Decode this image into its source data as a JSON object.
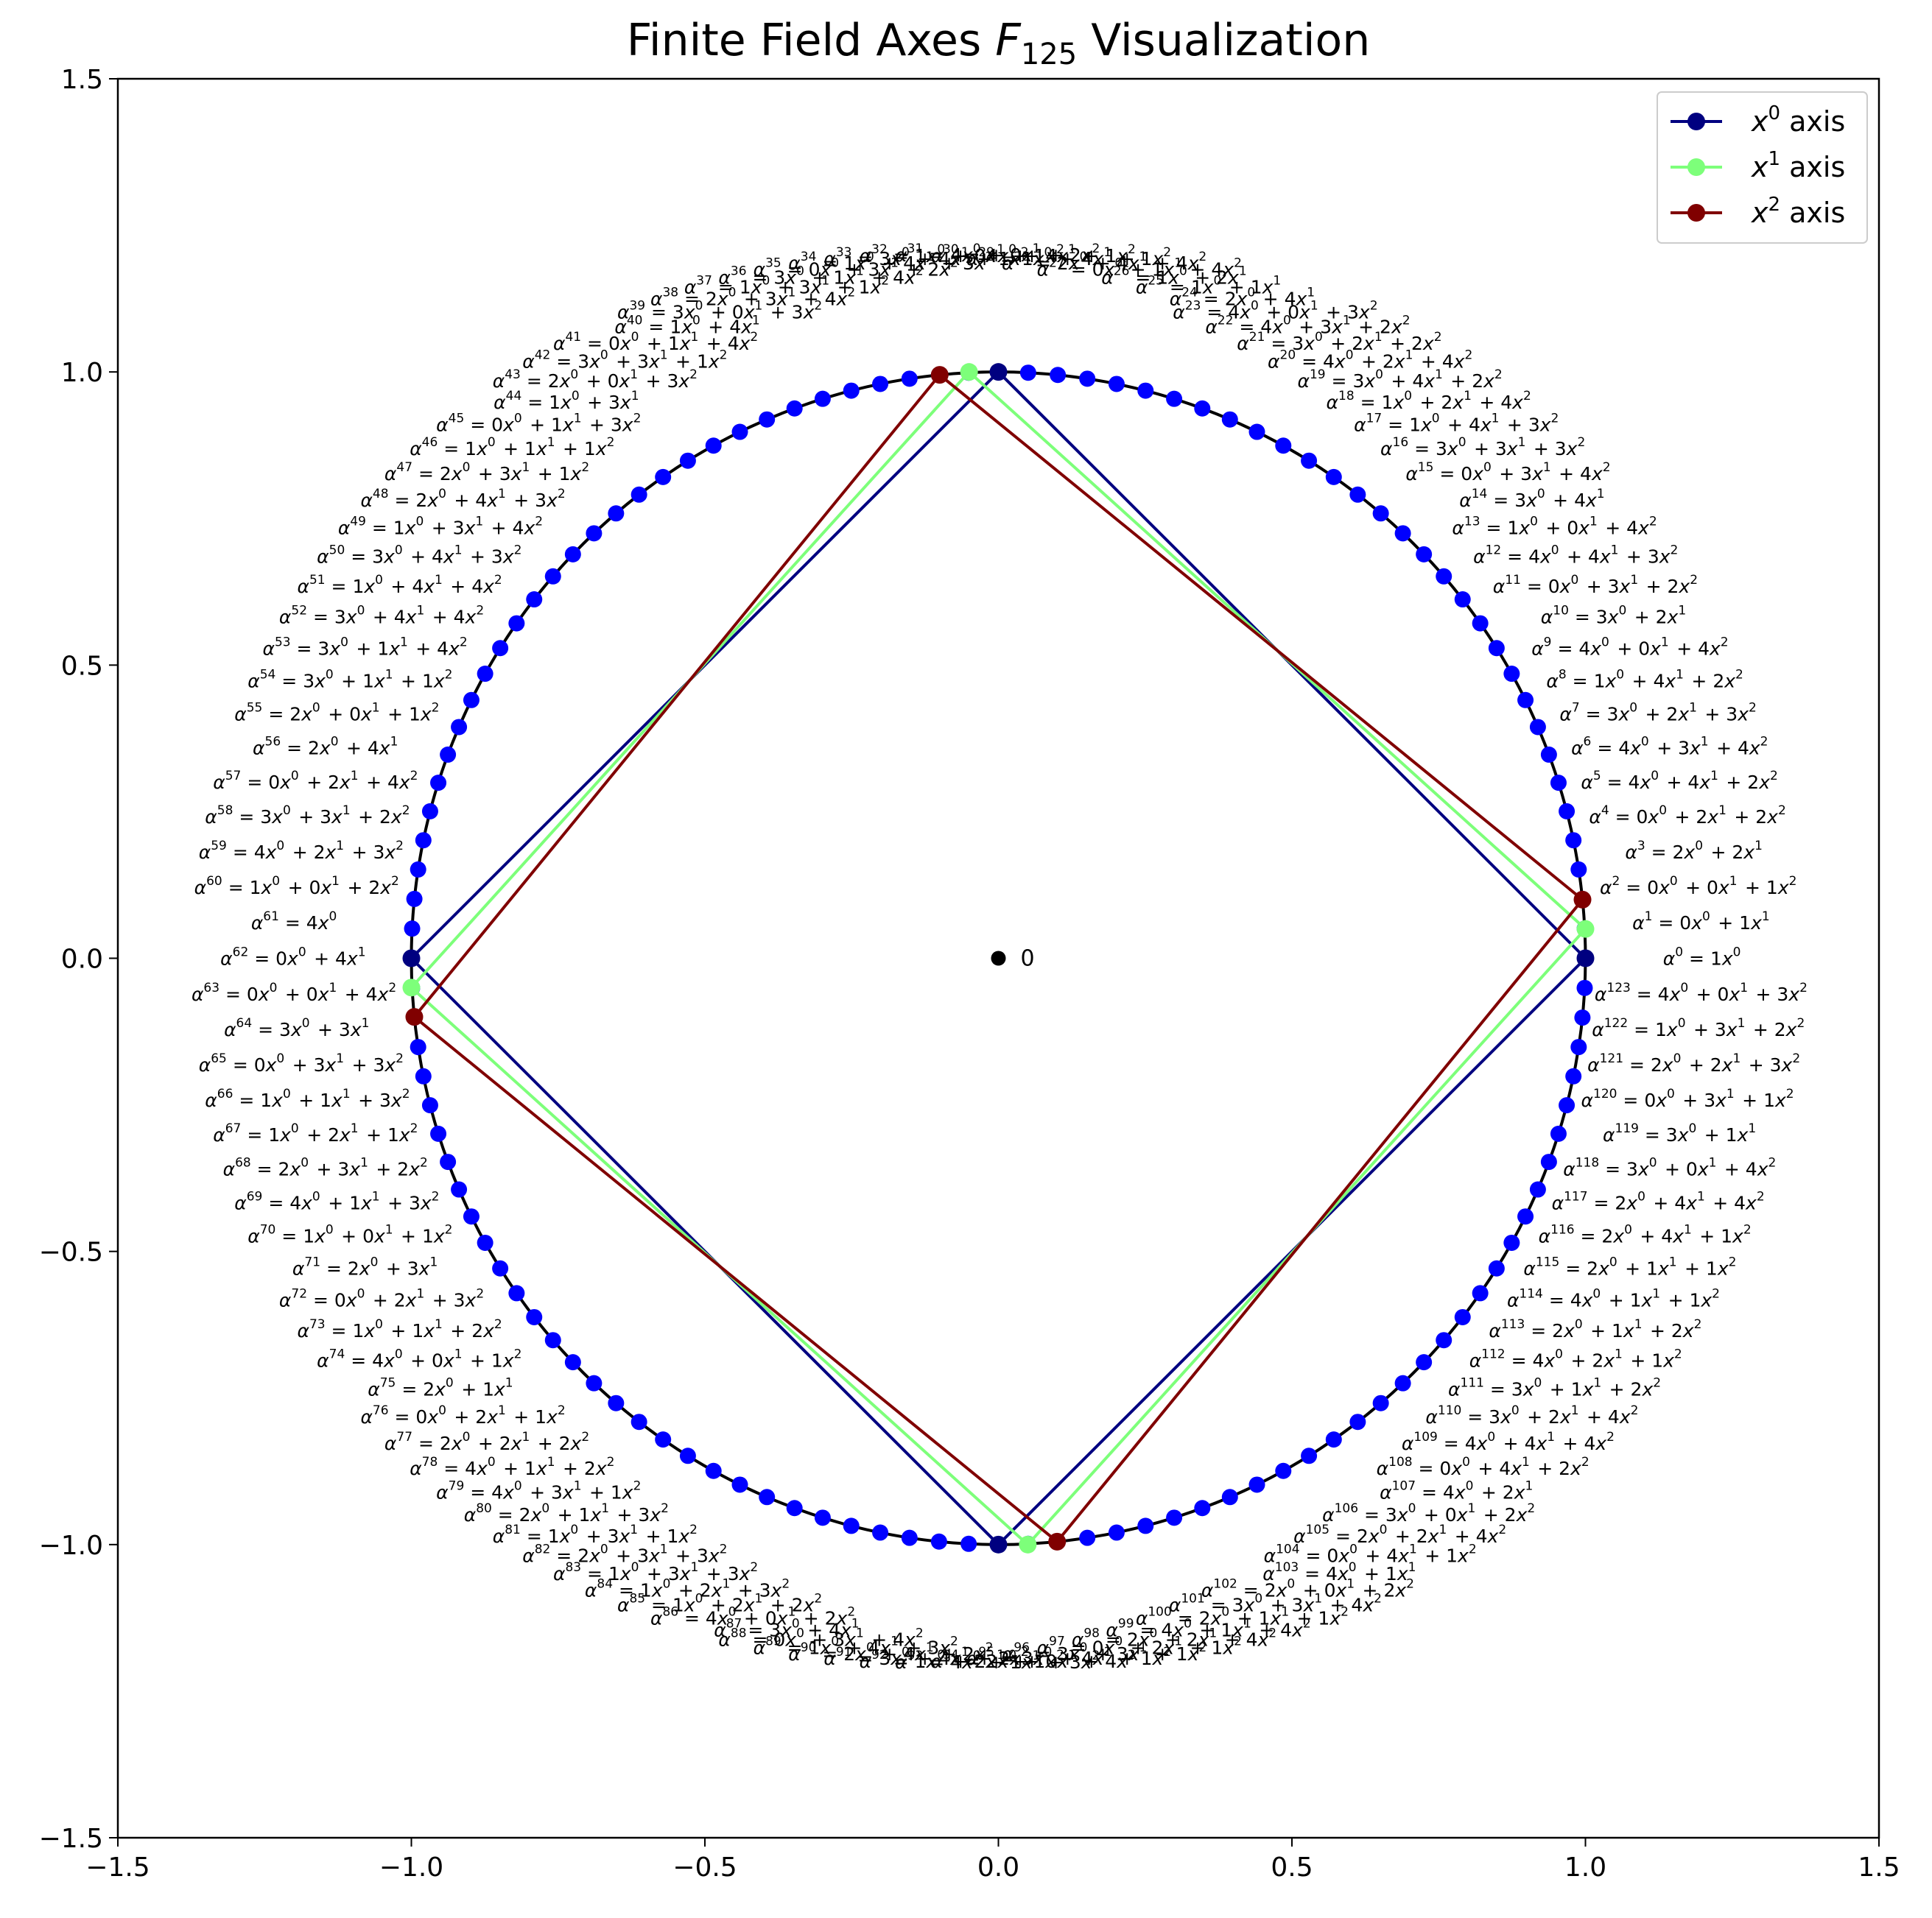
{
  "chart_data": {
    "type": "scatter",
    "title": {
      "prefix": "Finite Field Axes ",
      "field": "F",
      "subscript": "125",
      "suffix": " Visualization"
    },
    "xlim": [
      -1.5,
      1.5
    ],
    "ylim": [
      -1.5,
      1.5
    ],
    "xticks": [
      "−1.5",
      "−1.0",
      "−0.5",
      "0.0",
      "0.5",
      "1.0",
      "1.5"
    ],
    "yticks": [
      "1.5",
      "1.0",
      "0.5",
      "0.0",
      "−0.5",
      "−1.0",
      "−1.5"
    ],
    "xtick_values": [
      -1.5,
      -1.0,
      -0.5,
      0.0,
      0.5,
      1.0,
      1.5
    ],
    "ytick_values": [
      1.5,
      1.0,
      0.5,
      0.0,
      -0.5,
      -1.0,
      -1.5
    ],
    "grid": false,
    "legend_position": "top-right",
    "circle": {
      "radius": 1.0,
      "color": "#000000",
      "point_color": "#0000ff",
      "point_count": 124
    },
    "zero_point": {
      "x": 0.0,
      "y": 0.0,
      "label": "0",
      "color": "#000000"
    },
    "elements": [
      "1x^0",
      "0x^0+1x^1",
      "0x^0+0x^1+1x^2",
      "2x^0+2x^1",
      "0x^0+2x^1+2x^2",
      "4x^0+4x^1+2x^2",
      "4x^0+3x^1+4x^2",
      "3x^0+2x^1+3x^2",
      "1x^0+4x^1+2x^2",
      "4x^0+0x^1+4x^2",
      "3x^0+2x^1",
      "0x^0+3x^1+2x^2",
      "4x^0+4x^1+3x^2",
      "1x^0+0x^1+4x^2",
      "3x^0+4x^1",
      "0x^0+3x^1+4x^2",
      "3x^0+3x^1+3x^2",
      "1x^0+4x^1+3x^2",
      "1x^0+2x^1+4x^2",
      "3x^0+4x^1+2x^2",
      "4x^0+2x^1+4x^2",
      "3x^0+2x^1+2x^2",
      "4x^0+3x^1+2x^2",
      "4x^0+0x^1+3x^2",
      "2x^0+4x^1",
      "1x^0+1x^1",
      "1x^0+2x^1",
      "0x^0+1x^1+4x^2",
      "2x^0+4x^1+4x^2",
      "1x^0+4x^1+1x^2",
      "4x^0+4x^1+1x^2",
      "4x^0+0x^1+2x^2",
      "1x^0+0x^1+1x^2",
      "3x^0+4x^1+1x^2",
      "1x^0+4x^1+3x^2",
      "0x^0+3x^1+2x^2",
      "3x^0+1x^1+4x^2",
      "1x^0+3x^1+1x^2",
      "2x^0+3x^1+4x^2",
      "3x^0+0x^1+3x^2",
      "1x^0+4x^1",
      "0x^0+1x^1+4x^2",
      "3x^0+3x^1+1x^2",
      "2x^0+0x^1+3x^2",
      "1x^0+3x^1",
      "0x^0+1x^1+3x^2",
      "1x^0+1x^1+1x^2",
      "2x^0+3x^1+1x^2",
      "2x^0+4x^1+3x^2",
      "1x^0+3x^1+4x^2",
      "3x^0+4x^1+3x^2",
      "1x^0+4x^1+4x^2",
      "3x^0+4x^1+4x^2",
      "3x^0+1x^1+4x^2",
      "3x^0+1x^1+1x^2",
      "2x^0+0x^1+1x^2",
      "2x^0+4x^1",
      "0x^0+2x^1+4x^2",
      "3x^0+3x^1+2x^2",
      "4x^0+2x^1+3x^2",
      "1x^0+0x^1+2x^2",
      "4x^0",
      "0x^0+4x^1",
      "0x^0+0x^1+4x^2",
      "3x^0+3x^1",
      "0x^0+3x^1+3x^2",
      "1x^0+1x^1+3x^2",
      "1x^0+2x^1+1x^2",
      "2x^0+3x^1+2x^2",
      "4x^0+1x^1+3x^2",
      "1x^0+0x^1+1x^2",
      "2x^0+3x^1",
      "0x^0+2x^1+3x^2",
      "1x^0+1x^1+2x^2",
      "4x^0+0x^1+1x^2",
      "2x^0+1x^1",
      "0x^0+2x^1+1x^2",
      "2x^0+2x^1+2x^2",
      "4x^0+1x^1+2x^2",
      "4x^0+3x^1+1x^2",
      "2x^0+1x^1+3x^2",
      "1x^0+3x^1+1x^2",
      "2x^0+3x^1+3x^2",
      "1x^0+3x^1+3x^2",
      "1x^0+2x^1+3x^2",
      "1x^0+2x^1+2x^2",
      "4x^0+0x^1+2x^2",
      "3x^0+4x^1",
      "0x^0+3x^1+4x^2",
      "1x^0+4x^1+3x^2",
      "2x^0+4x^1+2x^2",
      "3x^0+4x^1+2x^2",
      "1x^0+2x^1+1x^2",
      "4x^0+1x^1+3x^2",
      "2x^0+0x^1+4x^2",
      "3x^0+4x^1+1x^2",
      "3x^0+3x^1+1x^2",
      "0x^0+2x^1+1x^2",
      "2x^0+2x^1+4x^2",
      "4x^0+1x^1+4x^2",
      "2x^0+1x^1+1x^2",
      "3x^0+3x^1+4x^2",
      "2x^0+0x^1+2x^2",
      "4x^0+1x^1",
      "0x^0+4x^1+1x^2",
      "2x^0+2x^1+4x^2",
      "3x^0+0x^1+2x^2",
      "4x^0+2x^1",
      "0x^0+4x^1+2x^2",
      "4x^0+4x^1+4x^2",
      "3x^0+2x^1+4x^2",
      "3x^0+1x^1+2x^2",
      "4x^0+2x^1+1x^2",
      "2x^0+1x^1+2x^2",
      "4x^0+1x^1+1x^2",
      "2x^0+1x^1+1x^2",
      "2x^0+4x^1+1x^2",
      "2x^0+4x^1+4x^2",
      "3x^0+0x^1+4x^2",
      "3x^0+1x^1",
      "0x^0+3x^1+1x^2",
      "2x^0+2x^1+3x^2",
      "1x^0+3x^1+2x^2",
      "4x^0+0x^1+3x^2"
    ],
    "series": [
      {
        "name": "x^0 axis",
        "legend_base": "x",
        "legend_sup": "0",
        "legend_suffix": " axis",
        "color": "#000080",
        "points": [
          [
            0.0,
            1.0
          ],
          [
            1.0,
            0.0
          ],
          [
            0.0,
            -1.0
          ],
          [
            -1.0,
            0.0
          ]
        ]
      },
      {
        "name": "x^1 axis",
        "legend_base": "x",
        "legend_sup": "1",
        "legend_suffix": " axis",
        "color": "#7dff7a",
        "points": [
          [
            -0.05,
            1.0
          ],
          [
            1.0,
            0.05
          ],
          [
            0.05,
            -1.0
          ],
          [
            -1.0,
            -0.05
          ]
        ]
      },
      {
        "name": "x^2 axis",
        "legend_base": "x",
        "legend_sup": "2",
        "legend_suffix": " axis",
        "color": "#800000",
        "points": [
          [
            -0.1,
            0.995
          ],
          [
            0.995,
            0.1
          ],
          [
            0.1,
            -0.995
          ],
          [
            -0.995,
            -0.1
          ]
        ]
      }
    ]
  }
}
